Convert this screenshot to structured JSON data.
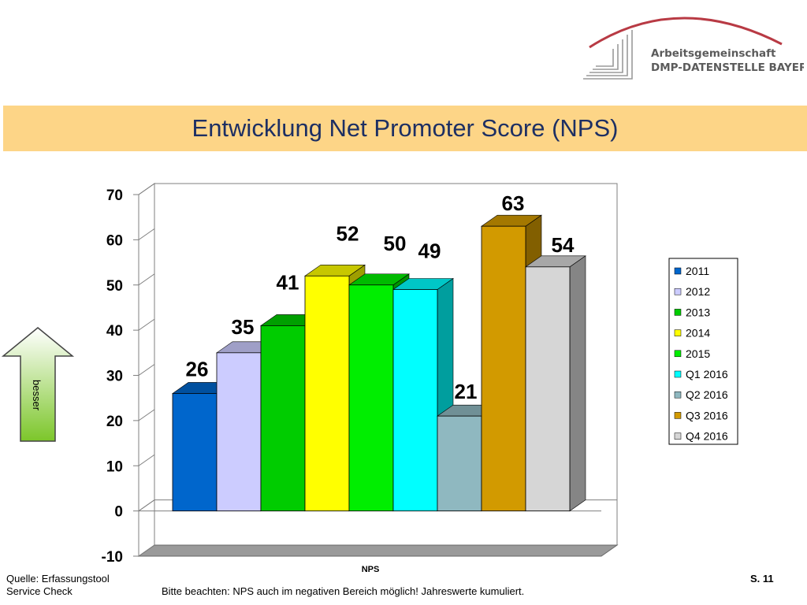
{
  "logo": {
    "line1": "Arbeitsgemeinschaft",
    "line2": "DMP-DATENSTELLE BAYERN"
  },
  "title": "Entwicklung Net Promoter Score (NPS)",
  "arrow_label": "besser",
  "colors": {
    "title_banner": "#fdd587",
    "title_text": "#1d2f63",
    "logo_arc": "#b83a44",
    "arrow_top": "#ffffff",
    "arrow_bottom": "#7cc62a"
  },
  "chart_data": {
    "type": "bar",
    "title": "",
    "xlabel": "NPS",
    "ylabel": "",
    "ylim": [
      -10,
      70
    ],
    "yticks": [
      -10,
      0,
      10,
      20,
      30,
      40,
      50,
      60,
      70
    ],
    "grid": false,
    "legend_position": "right",
    "categories": [
      "NPS"
    ],
    "series": [
      {
        "name": "2011",
        "values": [
          26
        ],
        "color": "#0066cc"
      },
      {
        "name": "2012",
        "values": [
          35
        ],
        "color": "#ccccff"
      },
      {
        "name": "2013",
        "values": [
          41
        ],
        "color": "#00cc00"
      },
      {
        "name": "2014",
        "values": [
          52
        ],
        "color": "#ffff00"
      },
      {
        "name": "2015",
        "values": [
          50
        ],
        "color": "#00ee00"
      },
      {
        "name": "Q1 2016",
        "values": [
          49
        ],
        "color": "#00ffff"
      },
      {
        "name": "Q2 2016",
        "values": [
          21
        ],
        "color": "#8fb8c0"
      },
      {
        "name": "Q3 2016",
        "values": [
          63
        ],
        "color": "#d29a00"
      },
      {
        "name": "Q4 2016",
        "values": [
          54
        ],
        "color": "#d6d6d6"
      }
    ]
  },
  "footer": {
    "source_line1": "Quelle: Erfassungstool",
    "source_line2": "Service Check",
    "note": "Bitte beachten: NPS auch im negativen Bereich möglich! Jahreswerte kumuliert.",
    "page": "S. 11"
  }
}
